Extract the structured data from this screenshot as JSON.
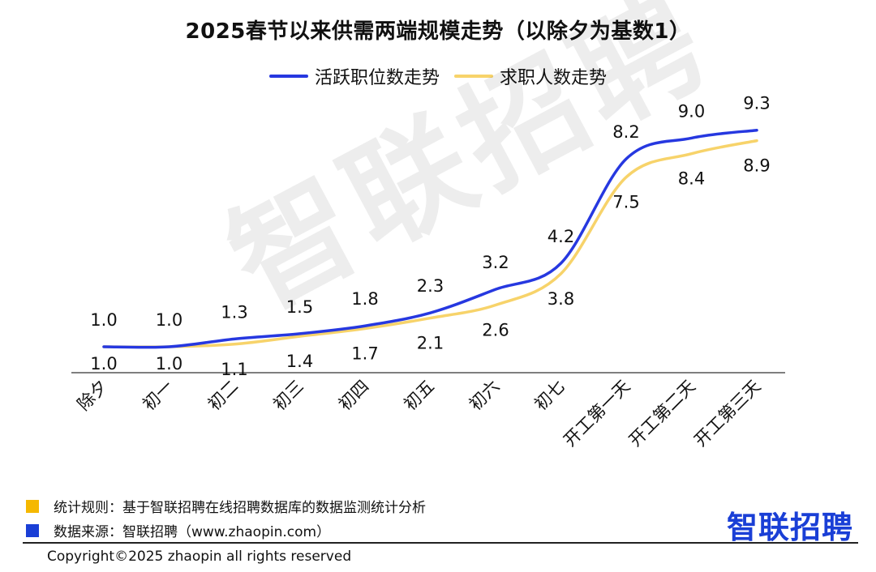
{
  "title": "2025春节以来供需两端规模走势（以除夕为基数1）",
  "chart_data": {
    "type": "line",
    "title": "2025春节以来供需两端规模走势（以除夕为基数1）",
    "categories": [
      "除夕",
      "初一",
      "初二",
      "初三",
      "初四",
      "初五",
      "初六",
      "初七",
      "开工第一天",
      "开工第二天",
      "开工第三天"
    ],
    "series": [
      {
        "name": "活跃职位数走势",
        "color": "#2638e0",
        "values": [
          1.0,
          1.0,
          1.3,
          1.5,
          1.8,
          2.3,
          3.2,
          4.2,
          8.2,
          9.0,
          9.3
        ]
      },
      {
        "name": "求职人数走势",
        "color": "#f7d36a",
        "values": [
          1.0,
          1.0,
          1.1,
          1.4,
          1.7,
          2.1,
          2.6,
          3.8,
          7.5,
          8.4,
          8.9
        ]
      }
    ],
    "legend_position": "top",
    "grid": false,
    "data_labels": true
  },
  "watermark": "智联招聘",
  "notes": [
    {
      "text": "统计规则：基于智联招聘在线招聘数据库的数据监测统计分析",
      "color": "#f5b800"
    },
    {
      "text": "数据来源：智联招聘（www.zhaopin.com）",
      "color": "#1a3fd6"
    }
  ],
  "brand": "智联招聘",
  "copyright": "Copyright©2025 zhaopin all rights reserved"
}
